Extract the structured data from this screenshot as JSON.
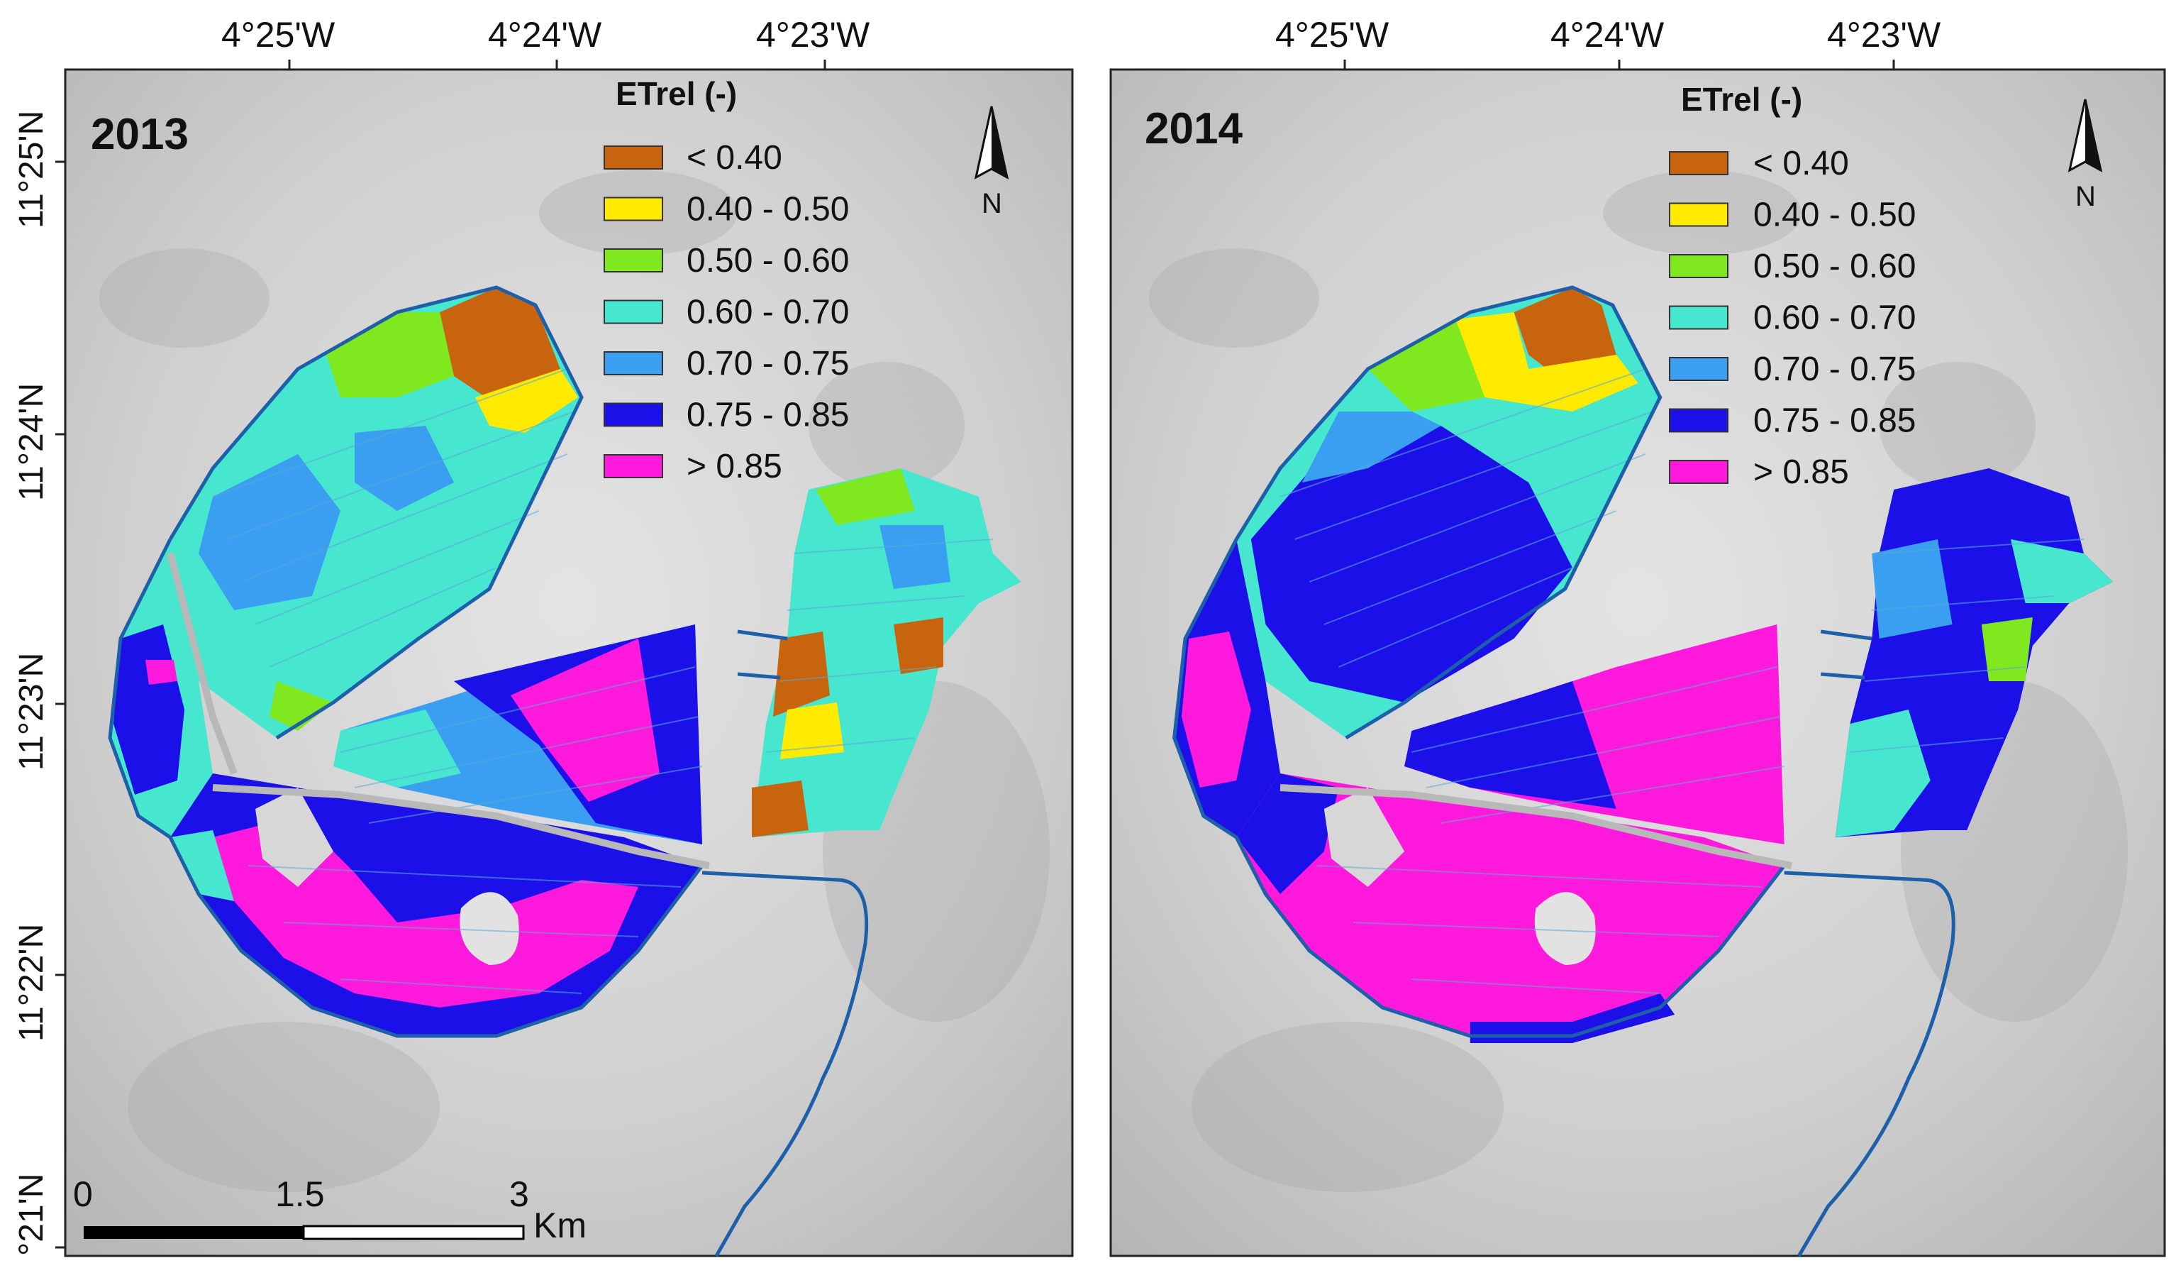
{
  "figure": "ETrel maps 2013 and 2014",
  "legend_title": "ETrel (-)",
  "legend_classes": [
    {
      "label": "< 0.40",
      "color": "#c8640e"
    },
    {
      "label": "0.40 - 0.50",
      "color": "#ffea00"
    },
    {
      "label": "0.50 - 0.60",
      "color": "#7fe81f"
    },
    {
      "label": "0.60 - 0.70",
      "color": "#46e6cf"
    },
    {
      "label": "0.70 - 0.75",
      "color": "#3a9ff0"
    },
    {
      "label": "0.75 - 0.85",
      "color": "#1c10e8"
    },
    {
      "label": "> 0.85",
      "color": "#ff19dc"
    }
  ],
  "panels": [
    {
      "year": "2013"
    },
    {
      "year": "2014"
    }
  ],
  "longitude_labels": [
    "4°25'W",
    "4°24'W",
    "4°23'W"
  ],
  "latitude_labels": [
    "11°25'N",
    "11°24'N",
    "11°23'N",
    "11°22'N",
    "°21'N"
  ],
  "north_arrow": "N",
  "scale_bar": {
    "labels": [
      "0",
      "1.5",
      "3"
    ],
    "unit": "Km"
  }
}
